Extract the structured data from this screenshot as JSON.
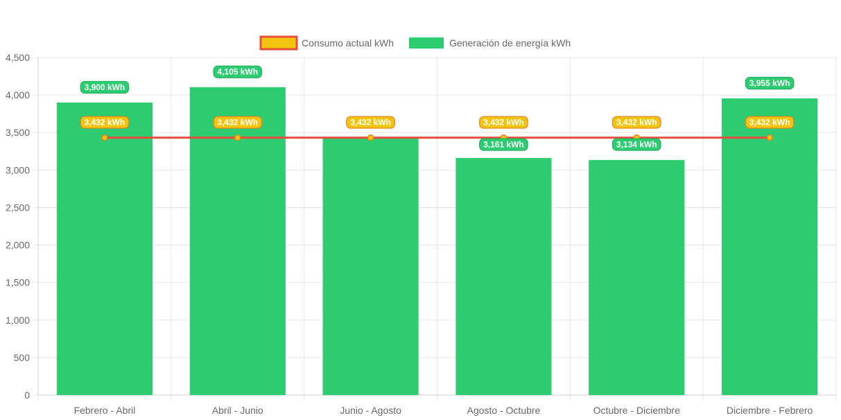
{
  "chart_data": {
    "type": "bar",
    "title": "",
    "xlabel": "",
    "ylabel": "",
    "ylim": [
      0,
      4500
    ],
    "yticks": [
      0,
      500,
      1000,
      1500,
      2000,
      2500,
      3000,
      3500,
      4000,
      4500
    ],
    "ytick_labels": [
      "0",
      "500",
      "1,000",
      "1,500",
      "2,000",
      "2,500",
      "3,000",
      "3,500",
      "4,000",
      "4,500"
    ],
    "categories": [
      "Febrero - Abril",
      "Abril - Junio",
      "Junio - Agosto",
      "Agosto - Octubre",
      "Octubre - Diciembre",
      "Diciembre - Febrero"
    ],
    "grid": true,
    "legend_position": "top",
    "series": [
      {
        "name": "Consumo actual kWh",
        "type": "line",
        "values": [
          3432,
          3432,
          3432,
          3432,
          3432,
          3432
        ],
        "labels": [
          "3,432 kWh",
          "3,432 kWh",
          "3,432 kWh",
          "3,432 kWh",
          "3,432 kWh",
          "3,432 kWh"
        ],
        "color": "#e74c3c",
        "point_color": "#f1c40f",
        "label_bg": "#f1c40f",
        "label_border": "#e67e22"
      },
      {
        "name": "Generación de energía kWh",
        "type": "bar",
        "values": [
          3900,
          4105,
          3432,
          3161,
          3134,
          3955
        ],
        "labels": [
          "3,900 kWh",
          "4,105 kWh",
          "",
          "3,161 kWh",
          "3,134 kWh",
          "3,955 kWh"
        ],
        "color": "#2ecc71",
        "label_bg": "#2ecc71",
        "label_border": "#27ae60"
      }
    ]
  }
}
